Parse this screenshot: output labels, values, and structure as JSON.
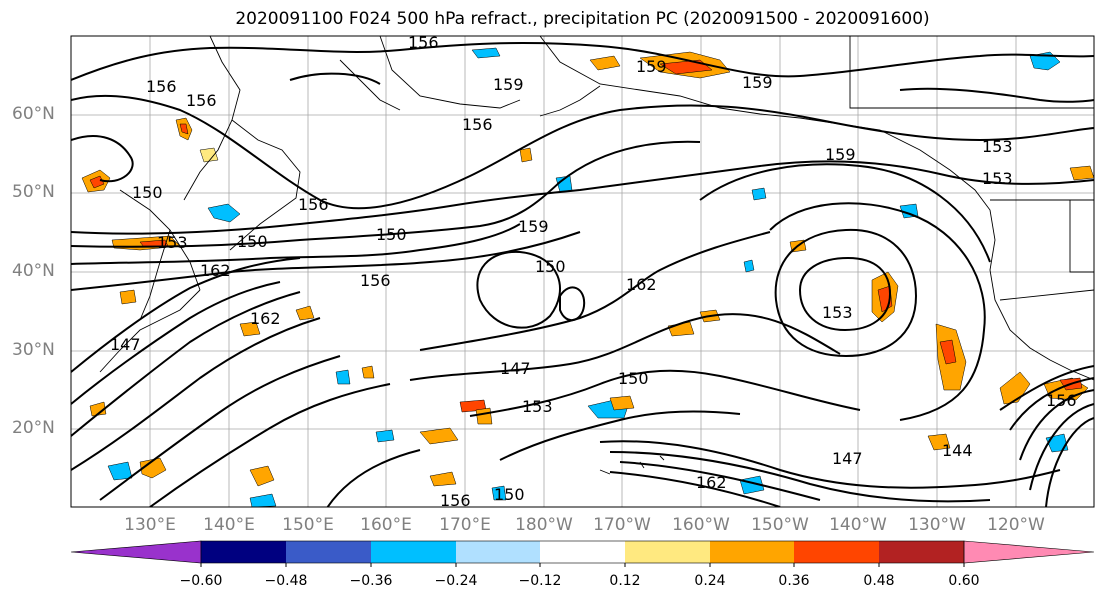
{
  "title": "2020091100 F024 500 hPa refract., precipitation PC (2020091500 - 2020091600)",
  "lat_labels": [
    "60°N",
    "50°N",
    "40°N",
    "30°N",
    "20°N"
  ],
  "lon_labels": [
    "130°E",
    "140°E",
    "150°E",
    "160°E",
    "170°E",
    "180°W",
    "170°W",
    "160°W",
    "150°W",
    "140°W",
    "130°W",
    "120°W"
  ],
  "contour_labels": [
    "156",
    "156",
    "156",
    "159",
    "159",
    "159",
    "159",
    "156",
    "150",
    "150",
    "153",
    "156",
    "156",
    "159",
    "150",
    "162",
    "153",
    "150",
    "147",
    "153",
    "150",
    "147",
    "144",
    "162",
    "150",
    "156",
    "153",
    "156",
    "162",
    "147",
    "162",
    "153"
  ],
  "colorbar": {
    "colors": [
      "#9932cc",
      "#000080",
      "#3a5bc8",
      "#00bfff",
      "#b0e0ff",
      "#ffffff",
      "#ffe980",
      "#ffa500",
      "#ff4500",
      "#b22222",
      "#ff8ab3"
    ],
    "tick_labels": [
      "−0.60",
      "−0.48",
      "−0.36",
      "−0.24",
      "−0.12",
      "0.12",
      "0.24",
      "0.36",
      "0.48",
      "0.60"
    ]
  }
}
